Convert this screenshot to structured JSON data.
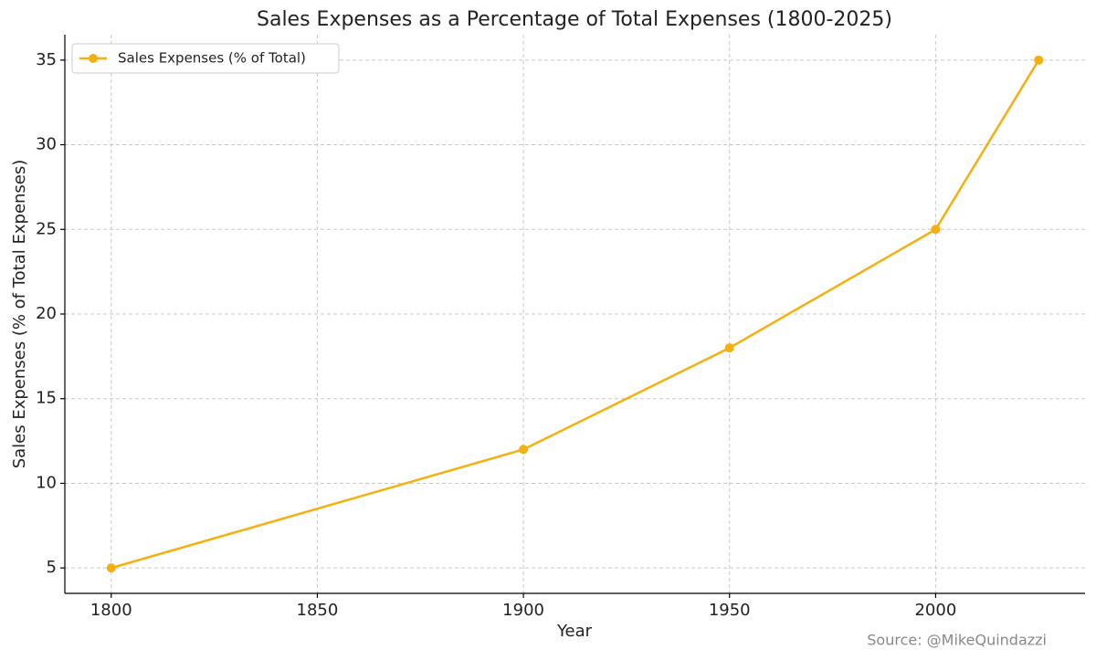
{
  "chart_data": {
    "type": "line",
    "title": "Sales Expenses as a Percentage of Total Expenses (1800-2025)",
    "x_label": "Year",
    "y_label": "Sales Expenses (% of Total Expenses)",
    "source": "Source: @MikeQuindazzi",
    "x": [
      1800,
      1900,
      1950,
      2000,
      2025
    ],
    "series": [
      {
        "name": "Sales Expenses (% of Total)",
        "color": "#f5b00f",
        "values": [
          5,
          12,
          18,
          25,
          35
        ]
      }
    ],
    "xlim": [
      1788.75,
      2036.25
    ],
    "xticks": [
      1800,
      1850,
      1900,
      1950,
      2000
    ],
    "ylim": [
      3.5,
      36.5
    ],
    "yticks": [
      5,
      10,
      15,
      20,
      25,
      30,
      35
    ],
    "grid": true,
    "markers": true,
    "legend_position": "upper-left"
  }
}
